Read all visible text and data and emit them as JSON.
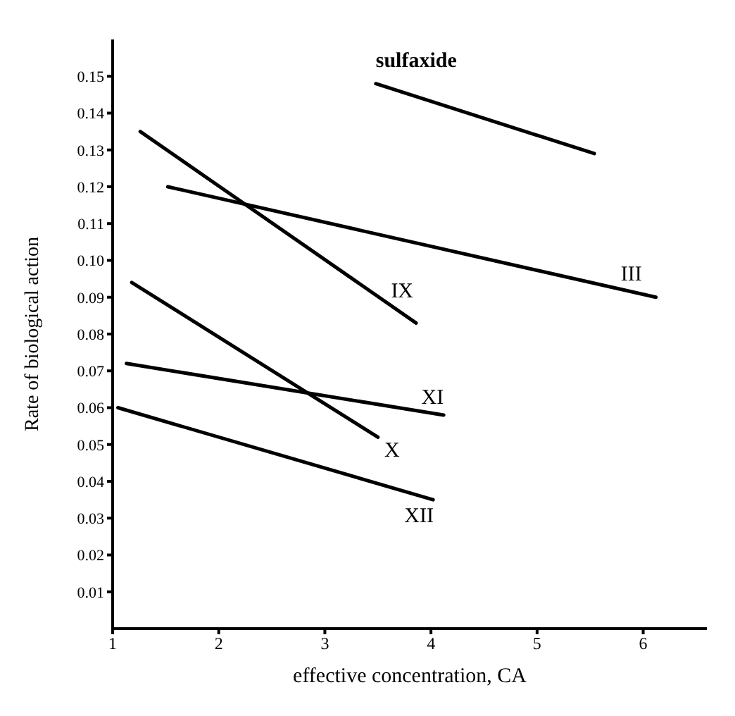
{
  "chart_data": {
    "type": "line",
    "xlabel": "effective concentration, CA",
    "ylabel": "Rate of biological action",
    "xlim": [
      1,
      6.6
    ],
    "ylim": [
      0,
      0.16
    ],
    "xticks": [
      1,
      2,
      3,
      4,
      5,
      6
    ],
    "yticks": [
      0.01,
      0.02,
      0.03,
      0.04,
      0.05,
      0.06,
      0.07,
      0.08,
      0.09,
      {
        "value": 0.1,
        "label": "0.10"
      },
      0.11,
      0.12,
      0.13,
      0.14,
      0.15
    ],
    "grid": false,
    "legend": false,
    "marker": "none",
    "line_style": "solid",
    "series": [
      {
        "name": "sulfaxide",
        "color": "#000000",
        "x": [
          3.48,
          5.54
        ],
        "values": [
          0.148,
          0.129
        ]
      },
      {
        "name": "III",
        "color": "#000000",
        "x": [
          1.52,
          6.12
        ],
        "values": [
          0.12,
          0.09
        ]
      },
      {
        "name": "IX",
        "color": "#000000",
        "x": [
          1.26,
          3.86
        ],
        "values": [
          0.135,
          0.083
        ]
      },
      {
        "name": "X",
        "color": "#000000",
        "x": [
          1.18,
          3.5
        ],
        "values": [
          0.094,
          0.052
        ]
      },
      {
        "name": "XI",
        "color": "#000000",
        "x": [
          1.13,
          4.12
        ],
        "values": [
          0.072,
          0.058
        ]
      },
      {
        "name": "XII",
        "color": "#000000",
        "x": [
          1.05,
          4.02
        ],
        "values": [
          0.06,
          0.035
        ]
      }
    ]
  }
}
